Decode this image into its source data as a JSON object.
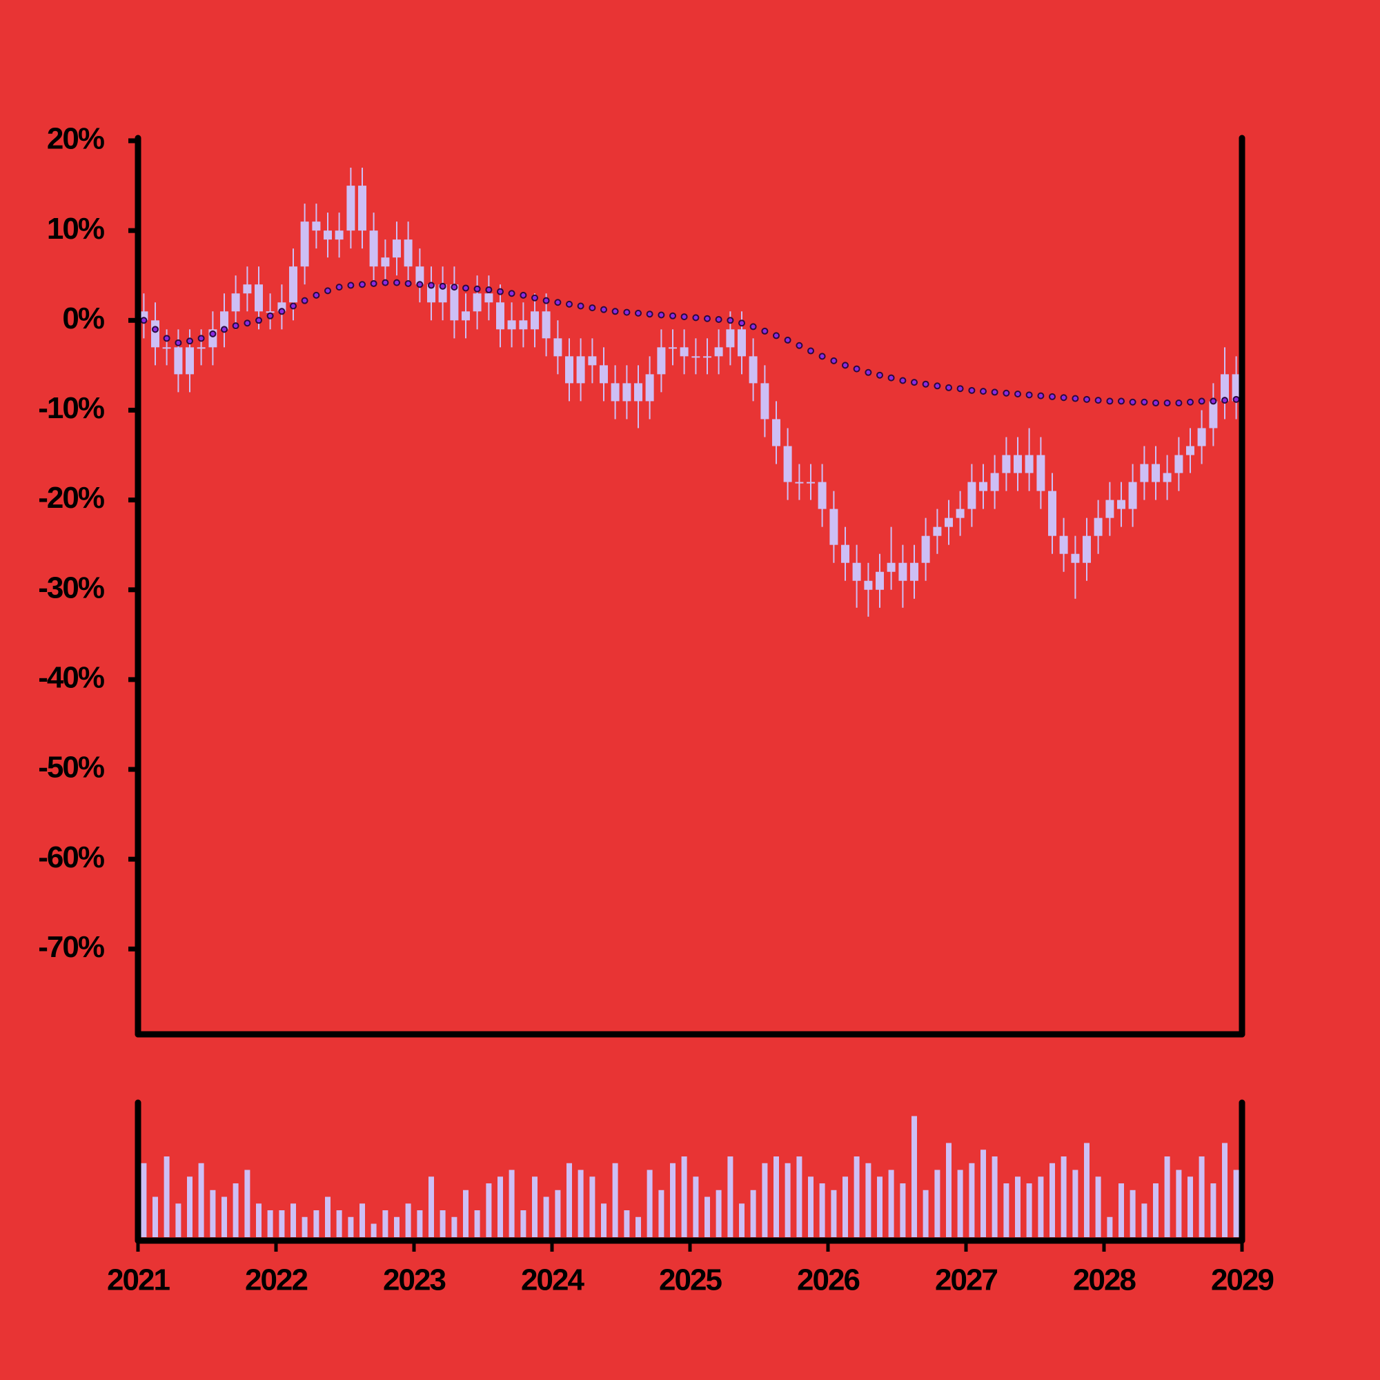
{
  "chart_data": {
    "type": "candlestick",
    "x": [
      2021.042,
      2021.125,
      2021.208,
      2021.292,
      2021.375,
      2021.458,
      2021.542,
      2021.625,
      2021.708,
      2021.792,
      2021.875,
      2021.958,
      2022.042,
      2022.125,
      2022.208,
      2022.292,
      2022.375,
      2022.458,
      2022.542,
      2022.625,
      2022.708,
      2022.792,
      2022.875,
      2022.958,
      2023.042,
      2023.125,
      2023.208,
      2023.292,
      2023.375,
      2023.458,
      2023.542,
      2023.625,
      2023.708,
      2023.792,
      2023.875,
      2023.958,
      2024.042,
      2024.125,
      2024.208,
      2024.292,
      2024.375,
      2024.458,
      2024.542,
      2024.625,
      2024.708,
      2024.792,
      2024.875,
      2024.958,
      2025.042,
      2025.125,
      2025.208,
      2025.292,
      2025.375,
      2025.458,
      2025.542,
      2025.625,
      2025.708,
      2025.792,
      2025.875,
      2025.958,
      2026.042,
      2026.125,
      2026.208,
      2026.292,
      2026.375,
      2026.458,
      2026.542,
      2026.625,
      2026.708,
      2026.792,
      2026.875,
      2026.958,
      2027.042,
      2027.125,
      2027.208,
      2027.292,
      2027.375,
      2027.458,
      2027.542,
      2027.625,
      2027.708,
      2027.792,
      2027.875,
      2027.958,
      2028.042,
      2028.125,
      2028.208,
      2028.292,
      2028.375,
      2028.458,
      2028.542,
      2028.625,
      2028.708,
      2028.792,
      2028.875,
      2028.958
    ],
    "open": [
      1,
      0,
      -3,
      -3,
      -6,
      -3,
      -3,
      -1,
      1,
      3,
      4,
      1,
      1,
      2,
      6,
      11,
      10,
      9,
      10,
      15,
      10,
      6,
      7,
      9,
      6,
      4,
      2,
      4,
      0,
      1,
      3,
      2,
      -1,
      0,
      -1,
      1,
      -2,
      -4,
      -7,
      -4,
      -5,
      -7,
      -9,
      -7,
      -9,
      -6,
      -3,
      -3,
      -4,
      -4,
      -4,
      -3,
      -1,
      -4,
      -7,
      -11,
      -14,
      -18,
      -18,
      -18,
      -21,
      -25,
      -27,
      -29,
      -30,
      -28,
      -27,
      -29,
      -27,
      -24,
      -23,
      -22,
      -21,
      -18,
      -19,
      -17,
      -15,
      -17,
      -15,
      -19,
      -24,
      -26,
      -27,
      -24,
      -22,
      -20,
      -21,
      -18,
      -16,
      -18,
      -17,
      -15,
      -14,
      -12,
      -9,
      -6
    ],
    "high": [
      3,
      2,
      -1,
      -1,
      -1,
      -1,
      1,
      3,
      5,
      6,
      6,
      3,
      4,
      8,
      13,
      13,
      12,
      12,
      17,
      17,
      12,
      9,
      11,
      11,
      8,
      6,
      6,
      6,
      3,
      5,
      5,
      4,
      2,
      2,
      3,
      3,
      0,
      -2,
      -2,
      -2,
      -3,
      -5,
      -5,
      -5,
      -4,
      -1,
      -1,
      -1,
      -2,
      -2,
      -1,
      1,
      1,
      -2,
      -5,
      -9,
      -12,
      -16,
      -16,
      -16,
      -19,
      -23,
      -25,
      -27,
      -26,
      -23,
      -25,
      -25,
      -22,
      -21,
      -20,
      -19,
      -16,
      -16,
      -15,
      -13,
      -13,
      -12,
      -13,
      -17,
      -22,
      -24,
      -22,
      -20,
      -18,
      -18,
      -16,
      -14,
      -14,
      -15,
      -13,
      -12,
      -10,
      -7,
      -3,
      -4
    ],
    "low": [
      -2,
      -5,
      -5,
      -8,
      -8,
      -5,
      -5,
      -3,
      -1,
      1,
      -1,
      -1,
      -1,
      0,
      4,
      8,
      7,
      7,
      8,
      8,
      4,
      4,
      5,
      4,
      2,
      0,
      0,
      -2,
      -2,
      -1,
      0,
      -3,
      -3,
      -3,
      -3,
      -4,
      -6,
      -9,
      -9,
      -7,
      -9,
      -11,
      -11,
      -12,
      -11,
      -8,
      -5,
      -6,
      -6,
      -6,
      -6,
      -5,
      -6,
      -9,
      -13,
      -16,
      -20,
      -20,
      -20,
      -23,
      -27,
      -29,
      -32,
      -33,
      -32,
      -30,
      -32,
      -31,
      -29,
      -26,
      -25,
      -24,
      -23,
      -21,
      -21,
      -19,
      -19,
      -19,
      -21,
      -26,
      -28,
      -31,
      -29,
      -26,
      -24,
      -23,
      -23,
      -20,
      -20,
      -20,
      -19,
      -17,
      -16,
      -14,
      -11,
      -11
    ],
    "close": [
      0,
      -3,
      -3,
      -6,
      -3,
      -3,
      -1,
      1,
      3,
      4,
      1,
      1,
      2,
      6,
      11,
      10,
      9,
      10,
      15,
      10,
      6,
      7,
      9,
      6,
      4,
      2,
      4,
      0,
      1,
      3,
      2,
      -1,
      0,
      -1,
      1,
      -2,
      -4,
      -7,
      -4,
      -5,
      -7,
      -9,
      -7,
      -9,
      -6,
      -3,
      -3,
      -4,
      -4,
      -4,
      -3,
      -1,
      -4,
      -7,
      -11,
      -14,
      -18,
      -18,
      -18,
      -21,
      -25,
      -27,
      -29,
      -30,
      -28,
      -27,
      -29,
      -27,
      -24,
      -23,
      -22,
      -21,
      -18,
      -19,
      -17,
      -15,
      -17,
      -15,
      -19,
      -24,
      -26,
      -27,
      -24,
      -22,
      -20,
      -21,
      -18,
      -16,
      -18,
      -17,
      -15,
      -14,
      -12,
      -9,
      -6,
      -9
    ],
    "color": "#cdbff5",
    "moving_average": {
      "color": "#8a2be2",
      "stroke": "#2a0a40",
      "values": [
        0,
        -1,
        -2,
        -2.5,
        -2.3,
        -2,
        -1.5,
        -1,
        -0.6,
        -0.3,
        0,
        0.5,
        1,
        1.6,
        2.2,
        2.8,
        3.3,
        3.7,
        3.9,
        4,
        4.1,
        4.2,
        4.2,
        4.1,
        4,
        3.9,
        3.8,
        3.7,
        3.6,
        3.5,
        3.4,
        3.2,
        3,
        2.8,
        2.5,
        2.2,
        2,
        1.8,
        1.6,
        1.4,
        1.2,
        1,
        0.9,
        0.8,
        0.7,
        0.6,
        0.5,
        0.4,
        0.3,
        0.2,
        0.1,
        0,
        -0.3,
        -0.7,
        -1.2,
        -1.7,
        -2.2,
        -2.8,
        -3.4,
        -4,
        -4.5,
        -5,
        -5.4,
        -5.8,
        -6.1,
        -6.4,
        -6.7,
        -6.9,
        -7.1,
        -7.3,
        -7.5,
        -7.6,
        -7.8,
        -7.9,
        -8,
        -8.1,
        -8.2,
        -8.3,
        -8.4,
        -8.5,
        -8.6,
        -8.7,
        -8.8,
        -8.9,
        -9,
        -9,
        -9.1,
        -9.1,
        -9.2,
        -9.2,
        -9.2,
        -9.1,
        -9,
        -9,
        -8.9,
        -8.8
      ]
    },
    "volume": {
      "color": "#cdbff5",
      "ylim": [
        0,
        100
      ],
      "values": [
        55,
        30,
        60,
        25,
        45,
        55,
        35,
        30,
        40,
        50,
        25,
        20,
        20,
        25,
        15,
        20,
        30,
        20,
        15,
        25,
        10,
        20,
        15,
        25,
        20,
        45,
        20,
        15,
        35,
        20,
        40,
        45,
        50,
        20,
        45,
        30,
        35,
        55,
        50,
        45,
        25,
        55,
        20,
        15,
        50,
        35,
        55,
        60,
        45,
        30,
        35,
        60,
        25,
        35,
        55,
        60,
        55,
        60,
        45,
        40,
        35,
        45,
        60,
        55,
        45,
        50,
        40,
        90,
        35,
        50,
        70,
        50,
        55,
        65,
        60,
        40,
        45,
        40,
        45,
        55,
        60,
        50,
        70,
        45,
        15,
        40,
        35,
        25,
        40,
        60,
        50,
        45,
        60,
        40,
        70,
        50
      ]
    },
    "xlim": [
      2021,
      2029
    ],
    "xticks": [
      2021,
      2022,
      2023,
      2024,
      2025,
      2026,
      2027,
      2028,
      2029
    ],
    "ylim": [
      -79.5,
      20
    ],
    "yticks": [
      {
        "value": 20,
        "label": "20%"
      },
      {
        "value": 10,
        "label": "10%"
      },
      {
        "value": 0,
        "label": "0%"
      },
      {
        "value": -10,
        "label": "-10%"
      },
      {
        "value": -20,
        "label": "-20%"
      },
      {
        "value": -30,
        "label": "-30%"
      },
      {
        "value": -40,
        "label": "-40%"
      },
      {
        "value": -50,
        "label": "-50%"
      },
      {
        "value": -60,
        "label": "-60%"
      },
      {
        "value": -70,
        "label": "-70%"
      }
    ]
  }
}
